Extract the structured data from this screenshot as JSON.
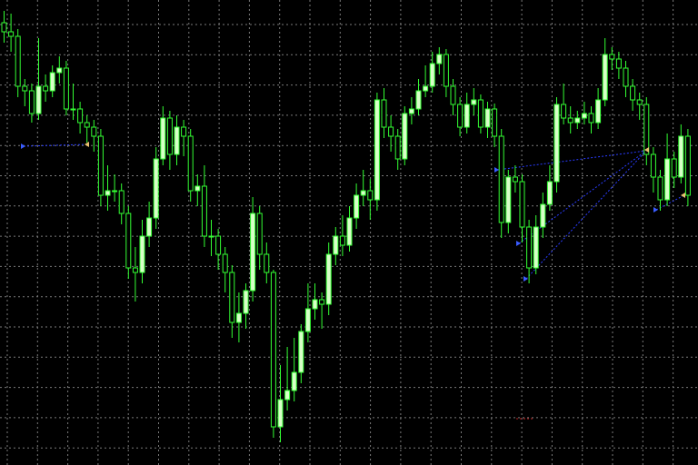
{
  "chart_data": {
    "type": "candlestick",
    "open": [
      487,
      477,
      472,
      417,
      412,
      387,
      417,
      412,
      432,
      437,
      392,
      392,
      377,
      372,
      362,
      297,
      302,
      302,
      277,
      217,
      212,
      252,
      272,
      337,
      382,
      342,
      372,
      362,
      302,
      307,
      252,
      252,
      232,
      212,
      157,
      167,
      192,
      277,
      232,
      212,
      42,
      72,
      82,
      102,
      147,
      172,
      182,
      177,
      232,
      252,
      242,
      272,
      297,
      302,
      292,
      402,
      372,
      362,
      337,
      387,
      392,
      412,
      417,
      442,
      452,
      417,
      397,
      372,
      397,
      402,
      372,
      392,
      362,
      267,
      317,
      312,
      262,
      217,
      262,
      287,
      312,
      397,
      382,
      377,
      382,
      387,
      377,
      402,
      452,
      447,
      437,
      417,
      402,
      397,
      342,
      317,
      292,
      337,
      317,
      362
    ],
    "high": [
      500,
      497,
      480,
      425,
      420,
      470,
      430,
      440,
      450,
      445,
      420,
      400,
      385,
      380,
      370,
      330,
      320,
      310,
      285,
      240,
      270,
      290,
      350,
      395,
      390,
      385,
      380,
      370,
      320,
      330,
      270,
      260,
      240,
      220,
      190,
      200,
      295,
      285,
      245,
      215,
      110,
      130,
      140,
      155,
      200,
      200,
      190,
      245,
      262,
      275,
      285,
      310,
      325,
      315,
      410,
      415,
      385,
      370,
      395,
      405,
      425,
      440,
      455,
      460,
      458,
      425,
      405,
      410,
      415,
      408,
      400,
      398,
      370,
      325,
      330,
      320,
      270,
      275,
      300,
      330,
      405,
      420,
      395,
      390,
      400,
      395,
      415,
      470,
      460,
      455,
      445,
      425,
      410,
      405,
      350,
      325,
      365,
      345,
      375,
      370
    ],
    "low": [
      465,
      455,
      405,
      395,
      377,
      380,
      400,
      405,
      420,
      385,
      380,
      365,
      355,
      345,
      285,
      280,
      290,
      265,
      205,
      180,
      200,
      240,
      260,
      330,
      325,
      330,
      340,
      290,
      285,
      240,
      230,
      215,
      190,
      140,
      135,
      150,
      180,
      215,
      200,
      30,
      25,
      60,
      70,
      90,
      135,
      160,
      150,
      165,
      220,
      230,
      235,
      260,
      285,
      270,
      280,
      360,
      345,
      325,
      330,
      375,
      385,
      405,
      410,
      430,
      405,
      385,
      362,
      365,
      385,
      365,
      360,
      350,
      250,
      255,
      300,
      245,
      200,
      210,
      250,
      280,
      300,
      375,
      365,
      370,
      375,
      365,
      370,
      395,
      435,
      425,
      405,
      390,
      380,
      330,
      300,
      280,
      285,
      305,
      310,
      285
    ],
    "close": [
      477,
      472,
      417,
      412,
      387,
      417,
      412,
      432,
      437,
      392,
      392,
      377,
      372,
      362,
      297,
      302,
      302,
      277,
      217,
      212,
      252,
      272,
      337,
      382,
      342,
      372,
      362,
      302,
      307,
      252,
      252,
      232,
      212,
      157,
      167,
      192,
      277,
      232,
      212,
      42,
      72,
      82,
      102,
      147,
      172,
      182,
      177,
      232,
      252,
      242,
      272,
      297,
      302,
      292,
      402,
      372,
      362,
      337,
      387,
      392,
      412,
      417,
      442,
      452,
      417,
      397,
      372,
      397,
      402,
      372,
      392,
      362,
      267,
      317,
      312,
      262,
      217,
      262,
      287,
      312,
      397,
      382,
      377,
      382,
      387,
      377,
      402,
      452,
      447,
      437,
      417,
      402,
      397,
      342,
      317,
      292,
      337,
      317,
      362,
      297
    ],
    "ylim": [
      0,
      512
    ],
    "grid": true,
    "up_color": "#d8ffc8",
    "down_color": "#000000",
    "wick_color": "#33ff33"
  }
}
